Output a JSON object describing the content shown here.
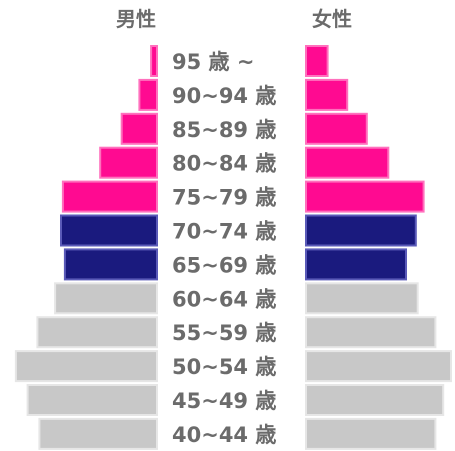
{
  "chart_data": {
    "type": "bar",
    "orientation": "horizontal",
    "layout": "population-pyramid",
    "left_title": "男性",
    "right_title": "女性",
    "categories": [
      "95 歳 ~",
      "90~94 歳",
      "85~89 歳",
      "80~84 歳",
      "75~79 歳",
      "70~74 歳",
      "65~69 歳",
      "60~64 歳",
      "55~59 歳",
      "50~54 歳",
      "45~49 歳",
      "40~44 歳"
    ],
    "series": [
      {
        "side": "left",
        "values": [
          6,
          18,
          36,
          58,
          96,
          98,
          94,
          104,
          122,
          144,
          132,
          120
        ]
      },
      {
        "side": "right",
        "values": [
          22,
          42,
          62,
          84,
          120,
          112,
          102,
          114,
          132,
          148,
          140,
          132
        ]
      }
    ],
    "category_groups": {
      "75+": {
        "color": "#ff0a91",
        "border": "#ff70bd"
      },
      "65-74": {
        "color": "#1a1a7e",
        "border": "#5a5ab8"
      },
      "40-64": {
        "color": "#c8c8c8",
        "border": "#e6e6e6"
      }
    },
    "group_of_category": [
      "75+",
      "75+",
      "75+",
      "75+",
      "75+",
      "65-74",
      "65-74",
      "40-64",
      "40-64",
      "40-64",
      "40-64",
      "40-64"
    ],
    "xlim": [
      0,
      150
    ],
    "grid": false,
    "legend": "none"
  }
}
